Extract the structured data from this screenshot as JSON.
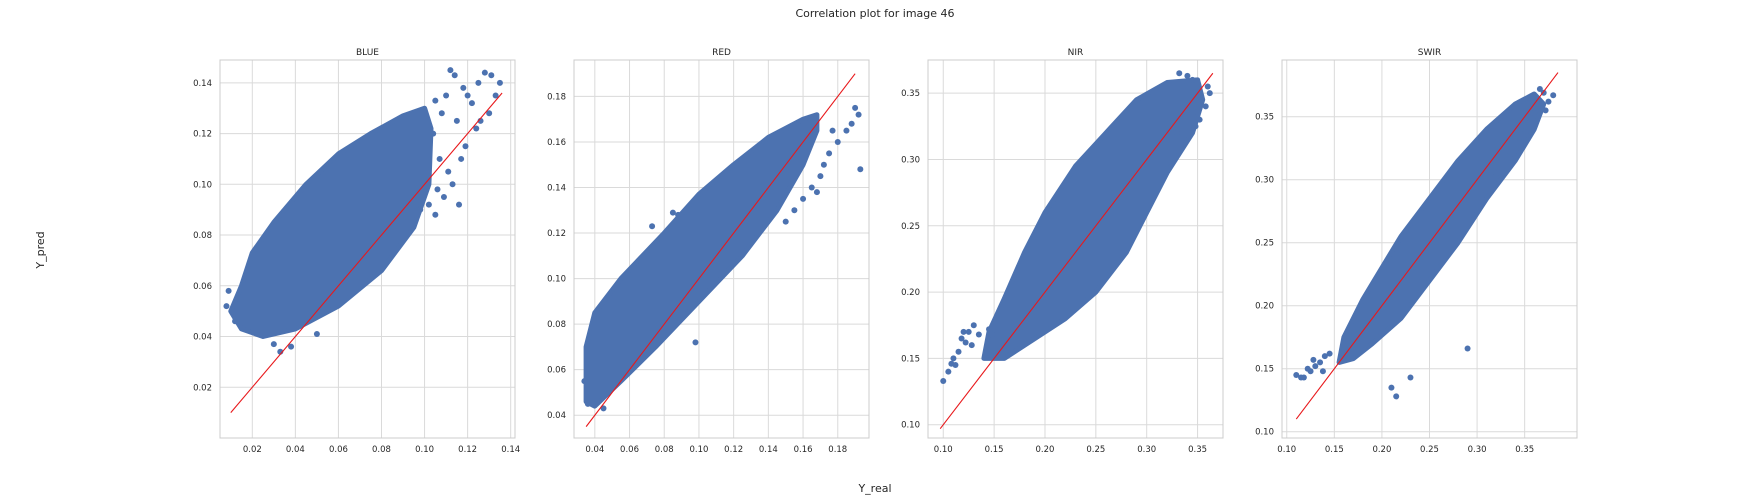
{
  "figure": {
    "title": "Correlation plot for image 46",
    "xlabel": "Y_real",
    "ylabel": "Y_pred"
  },
  "chart_data": [
    {
      "type": "scatter",
      "title": "BLUE",
      "xlim": [
        0.005,
        0.142
      ],
      "ylim": [
        0.0,
        0.149
      ],
      "xticks": [
        {
          "v": 0.02,
          "label": "0.02"
        },
        {
          "v": 0.04,
          "label": "0.04"
        },
        {
          "v": 0.06,
          "label": "0.06"
        },
        {
          "v": 0.08,
          "label": "0.08"
        },
        {
          "v": 0.1,
          "label": "0.10"
        },
        {
          "v": 0.12,
          "label": "0.12"
        },
        {
          "v": 0.14,
          "label": "0.14"
        }
      ],
      "yticks": [
        {
          "v": 0.02,
          "label": "0.02"
        },
        {
          "v": 0.04,
          "label": "0.04"
        },
        {
          "v": 0.06,
          "label": "0.06"
        },
        {
          "v": 0.08,
          "label": "0.08"
        },
        {
          "v": 0.1,
          "label": "0.10"
        },
        {
          "v": 0.12,
          "label": "0.12"
        },
        {
          "v": 0.14,
          "label": "0.14"
        }
      ],
      "reference_line": [
        [
          0.01,
          0.01
        ],
        [
          0.136,
          0.136
        ]
      ],
      "dense_region": [
        [
          0.01,
          0.05
        ],
        [
          0.015,
          0.06
        ],
        [
          0.02,
          0.073
        ],
        [
          0.03,
          0.085
        ],
        [
          0.045,
          0.1
        ],
        [
          0.06,
          0.112
        ],
        [
          0.075,
          0.12
        ],
        [
          0.09,
          0.127
        ],
        [
          0.1,
          0.13
        ],
        [
          0.103,
          0.122
        ],
        [
          0.102,
          0.1
        ],
        [
          0.095,
          0.083
        ],
        [
          0.08,
          0.066
        ],
        [
          0.06,
          0.052
        ],
        [
          0.04,
          0.043
        ],
        [
          0.025,
          0.04
        ],
        [
          0.015,
          0.043
        ]
      ],
      "points": [
        [
          0.112,
          0.145
        ],
        [
          0.114,
          0.143
        ],
        [
          0.128,
          0.144
        ],
        [
          0.131,
          0.143
        ],
        [
          0.125,
          0.14
        ],
        [
          0.135,
          0.14
        ],
        [
          0.133,
          0.135
        ],
        [
          0.118,
          0.138
        ],
        [
          0.11,
          0.135
        ],
        [
          0.12,
          0.135
        ],
        [
          0.122,
          0.132
        ],
        [
          0.105,
          0.133
        ],
        [
          0.108,
          0.128
        ],
        [
          0.115,
          0.125
        ],
        [
          0.104,
          0.12
        ],
        [
          0.107,
          0.11
        ],
        [
          0.111,
          0.105
        ],
        [
          0.113,
          0.1
        ],
        [
          0.106,
          0.098
        ],
        [
          0.109,
          0.095
        ],
        [
          0.116,
          0.092
        ],
        [
          0.102,
          0.092
        ],
        [
          0.098,
          0.09
        ],
        [
          0.105,
          0.088
        ],
        [
          0.124,
          0.122
        ],
        [
          0.119,
          0.115
        ],
        [
          0.117,
          0.11
        ],
        [
          0.13,
          0.128
        ],
        [
          0.126,
          0.125
        ],
        [
          0.033,
          0.034
        ],
        [
          0.03,
          0.037
        ],
        [
          0.038,
          0.036
        ],
        [
          0.05,
          0.041
        ],
        [
          0.012,
          0.046
        ],
        [
          0.008,
          0.052
        ],
        [
          0.009,
          0.058
        ]
      ]
    },
    {
      "type": "scatter",
      "title": "RED",
      "xlim": [
        0.028,
        0.198
      ],
      "ylim": [
        0.03,
        0.196
      ],
      "xticks": [
        {
          "v": 0.04,
          "label": "0.04"
        },
        {
          "v": 0.06,
          "label": "0.06"
        },
        {
          "v": 0.08,
          "label": "0.08"
        },
        {
          "v": 0.1,
          "label": "0.10"
        },
        {
          "v": 0.12,
          "label": "0.12"
        },
        {
          "v": 0.14,
          "label": "0.14"
        },
        {
          "v": 0.16,
          "label": "0.16"
        },
        {
          "v": 0.18,
          "label": "0.18"
        }
      ],
      "yticks": [
        {
          "v": 0.04,
          "label": "0.04"
        },
        {
          "v": 0.06,
          "label": "0.06"
        },
        {
          "v": 0.08,
          "label": "0.08"
        },
        {
          "v": 0.1,
          "label": "0.10"
        },
        {
          "v": 0.12,
          "label": "0.12"
        },
        {
          "v": 0.14,
          "label": "0.14"
        },
        {
          "v": 0.16,
          "label": "0.16"
        },
        {
          "v": 0.18,
          "label": "0.18"
        }
      ],
      "reference_line": [
        [
          0.035,
          0.035
        ],
        [
          0.19,
          0.19
        ]
      ],
      "dense_region": [
        [
          0.035,
          0.046
        ],
        [
          0.035,
          0.07
        ],
        [
          0.04,
          0.085
        ],
        [
          0.055,
          0.1
        ],
        [
          0.08,
          0.12
        ],
        [
          0.1,
          0.137
        ],
        [
          0.12,
          0.15
        ],
        [
          0.14,
          0.162
        ],
        [
          0.16,
          0.17
        ],
        [
          0.168,
          0.172
        ],
        [
          0.168,
          0.165
        ],
        [
          0.16,
          0.15
        ],
        [
          0.145,
          0.13
        ],
        [
          0.125,
          0.11
        ],
        [
          0.1,
          0.09
        ],
        [
          0.075,
          0.07
        ],
        [
          0.055,
          0.055
        ],
        [
          0.04,
          0.044
        ]
      ],
      "points": [
        [
          0.19,
          0.175
        ],
        [
          0.192,
          0.172
        ],
        [
          0.188,
          0.168
        ],
        [
          0.185,
          0.165
        ],
        [
          0.193,
          0.148
        ],
        [
          0.177,
          0.165
        ],
        [
          0.18,
          0.16
        ],
        [
          0.175,
          0.155
        ],
        [
          0.172,
          0.15
        ],
        [
          0.17,
          0.145
        ],
        [
          0.165,
          0.14
        ],
        [
          0.168,
          0.138
        ],
        [
          0.16,
          0.135
        ],
        [
          0.155,
          0.13
        ],
        [
          0.15,
          0.125
        ],
        [
          0.085,
          0.129
        ],
        [
          0.088,
          0.128
        ],
        [
          0.092,
          0.127
        ],
        [
          0.098,
          0.072
        ],
        [
          0.073,
          0.123
        ],
        [
          0.045,
          0.043
        ],
        [
          0.036,
          0.045
        ],
        [
          0.034,
          0.055
        ]
      ]
    },
    {
      "type": "scatter",
      "title": "NIR",
      "xlim": [
        0.085,
        0.375
      ],
      "ylim": [
        0.09,
        0.375
      ],
      "xticks": [
        {
          "v": 0.1,
          "label": "0.10"
        },
        {
          "v": 0.15,
          "label": "0.15"
        },
        {
          "v": 0.2,
          "label": "0.20"
        },
        {
          "v": 0.25,
          "label": "0.25"
        },
        {
          "v": 0.3,
          "label": "0.30"
        },
        {
          "v": 0.35,
          "label": "0.35"
        }
      ],
      "yticks": [
        {
          "v": 0.1,
          "label": "0.10"
        },
        {
          "v": 0.15,
          "label": "0.15"
        },
        {
          "v": 0.2,
          "label": "0.20"
        },
        {
          "v": 0.25,
          "label": "0.25"
        },
        {
          "v": 0.3,
          "label": "0.30"
        },
        {
          "v": 0.35,
          "label": "0.35"
        }
      ],
      "reference_line": [
        [
          0.097,
          0.097
        ],
        [
          0.365,
          0.365
        ]
      ],
      "dense_region": [
        [
          0.14,
          0.15
        ],
        [
          0.145,
          0.17
        ],
        [
          0.16,
          0.195
        ],
        [
          0.18,
          0.23
        ],
        [
          0.2,
          0.26
        ],
        [
          0.23,
          0.295
        ],
        [
          0.26,
          0.32
        ],
        [
          0.29,
          0.345
        ],
        [
          0.32,
          0.358
        ],
        [
          0.35,
          0.36
        ],
        [
          0.355,
          0.345
        ],
        [
          0.345,
          0.32
        ],
        [
          0.32,
          0.29
        ],
        [
          0.3,
          0.26
        ],
        [
          0.28,
          0.23
        ],
        [
          0.25,
          0.2
        ],
        [
          0.22,
          0.18
        ],
        [
          0.19,
          0.165
        ],
        [
          0.16,
          0.15
        ]
      ],
      "points": [
        [
          0.1,
          0.133
        ],
        [
          0.105,
          0.14
        ],
        [
          0.11,
          0.15
        ],
        [
          0.108,
          0.146
        ],
        [
          0.115,
          0.155
        ],
        [
          0.118,
          0.165
        ],
        [
          0.122,
          0.162
        ],
        [
          0.128,
          0.16
        ],
        [
          0.12,
          0.17
        ],
        [
          0.13,
          0.175
        ],
        [
          0.135,
          0.168
        ],
        [
          0.125,
          0.17
        ],
        [
          0.145,
          0.172
        ],
        [
          0.148,
          0.168
        ],
        [
          0.112,
          0.145
        ],
        [
          0.332,
          0.365
        ],
        [
          0.34,
          0.363
        ],
        [
          0.345,
          0.36
        ],
        [
          0.36,
          0.355
        ],
        [
          0.362,
          0.35
        ],
        [
          0.358,
          0.34
        ],
        [
          0.352,
          0.33
        ],
        [
          0.348,
          0.325
        ],
        [
          0.33,
          0.32
        ],
        [
          0.325,
          0.315
        ]
      ]
    },
    {
      "type": "scatter",
      "title": "SWIR",
      "xlim": [
        0.095,
        0.405
      ],
      "ylim": [
        0.095,
        0.395
      ],
      "xticks": [
        {
          "v": 0.1,
          "label": "0.10"
        },
        {
          "v": 0.15,
          "label": "0.15"
        },
        {
          "v": 0.2,
          "label": "0.20"
        },
        {
          "v": 0.25,
          "label": "0.25"
        },
        {
          "v": 0.3,
          "label": "0.30"
        },
        {
          "v": 0.35,
          "label": "0.35"
        }
      ],
      "yticks": [
        {
          "v": 0.1,
          "label": "0.10"
        },
        {
          "v": 0.15,
          "label": "0.15"
        },
        {
          "v": 0.2,
          "label": "0.20"
        },
        {
          "v": 0.25,
          "label": "0.25"
        },
        {
          "v": 0.3,
          "label": "0.30"
        },
        {
          "v": 0.35,
          "label": "0.35"
        }
      ],
      "reference_line": [
        [
          0.11,
          0.11
        ],
        [
          0.385,
          0.385
        ]
      ],
      "dense_region": [
        [
          0.155,
          0.155
        ],
        [
          0.16,
          0.175
        ],
        [
          0.18,
          0.205
        ],
        [
          0.2,
          0.23
        ],
        [
          0.22,
          0.255
        ],
        [
          0.25,
          0.285
        ],
        [
          0.28,
          0.315
        ],
        [
          0.31,
          0.34
        ],
        [
          0.34,
          0.36
        ],
        [
          0.36,
          0.368
        ],
        [
          0.37,
          0.36
        ],
        [
          0.36,
          0.34
        ],
        [
          0.34,
          0.315
        ],
        [
          0.31,
          0.285
        ],
        [
          0.28,
          0.25
        ],
        [
          0.25,
          0.22
        ],
        [
          0.22,
          0.19
        ],
        [
          0.19,
          0.17
        ],
        [
          0.17,
          0.158
        ]
      ],
      "points": [
        [
          0.11,
          0.145
        ],
        [
          0.115,
          0.143
        ],
        [
          0.118,
          0.143
        ],
        [
          0.122,
          0.15
        ],
        [
          0.125,
          0.148
        ],
        [
          0.13,
          0.152
        ],
        [
          0.128,
          0.157
        ],
        [
          0.135,
          0.155
        ],
        [
          0.14,
          0.16
        ],
        [
          0.145,
          0.162
        ],
        [
          0.138,
          0.148
        ],
        [
          0.215,
          0.128
        ],
        [
          0.21,
          0.135
        ],
        [
          0.23,
          0.143
        ],
        [
          0.29,
          0.166
        ],
        [
          0.38,
          0.367
        ],
        [
          0.375,
          0.362
        ],
        [
          0.37,
          0.369
        ],
        [
          0.366,
          0.372
        ],
        [
          0.372,
          0.355
        ],
        [
          0.36,
          0.353
        ],
        [
          0.355,
          0.345
        ],
        [
          0.35,
          0.34
        ],
        [
          0.345,
          0.33
        ],
        [
          0.335,
          0.32
        ],
        [
          0.32,
          0.305
        ],
        [
          0.305,
          0.285
        ]
      ]
    }
  ]
}
